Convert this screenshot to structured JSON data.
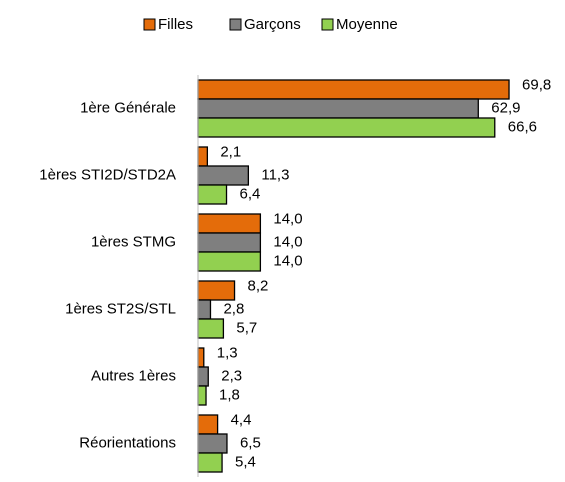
{
  "chart_data": {
    "type": "barh",
    "categories": [
      "1ère Générale",
      "1ères STI2D/STD2A",
      "1ères STMG",
      "1ères ST2S/STL",
      "Autres 1ères",
      "Réorientations"
    ],
    "series": [
      {
        "name": "Filles",
        "color": "#e46c0a",
        "values": [
          69.8,
          2.1,
          14.0,
          8.2,
          1.3,
          4.4
        ],
        "value_labels": [
          "69,8",
          "2,1",
          "14,0",
          "8,2",
          "1,3",
          "4,4"
        ]
      },
      {
        "name": "Garçons",
        "color": "#7f7f7f",
        "values": [
          62.9,
          11.3,
          14.0,
          2.8,
          2.3,
          6.5
        ],
        "value_labels": [
          "62,9",
          "11,3",
          "14,0",
          "2,8",
          "2,3",
          "6,5"
        ]
      },
      {
        "name": "Moyenne",
        "color": "#92d050",
        "values": [
          66.6,
          6.4,
          14.0,
          5.7,
          1.8,
          5.4
        ],
        "value_labels": [
          "66,6",
          "6,4",
          "14,0",
          "5,7",
          "1,8",
          "5,4"
        ]
      }
    ],
    "legend": "top"
  }
}
